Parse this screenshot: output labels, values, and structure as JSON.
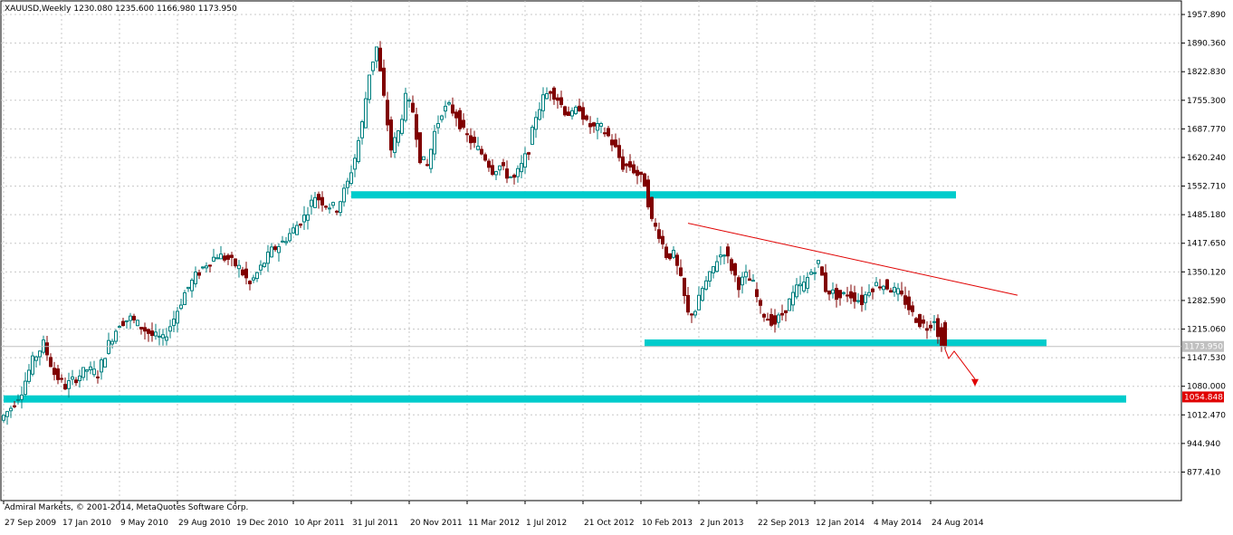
{
  "window": {
    "header_text": "XAUUSD,Weekly  1230.080 1235.600 1166.980 1173.950",
    "copyright": "Admiral Markets, © 2001-2014, MetaQuotes Software Corp."
  },
  "colors": {
    "background": "#ffffff",
    "grid": "#c8c8c8",
    "bull_candle": "#008080",
    "bear_candle": "#800000",
    "support_zone": "#00cccc",
    "trendline": "#e00000",
    "current_price_label": "#c0c0c0",
    "target_label": "#e00000",
    "axis_text": "#000000"
  },
  "chart_data": {
    "type": "candlestick",
    "symbol": "XAUUSD",
    "timeframe": "Weekly",
    "last_bar": {
      "open": 1230.08,
      "high": 1235.6,
      "low": 1166.98,
      "close": 1173.95
    },
    "ylim": [
      810,
      1990
    ],
    "y_ticks": [
      "1957.890",
      "1890.360",
      "1822.830",
      "1755.300",
      "1687.770",
      "1620.240",
      "1552.710",
      "1485.180",
      "1417.650",
      "1350.120",
      "1282.590",
      "1215.060",
      "1147.530",
      "1080.000",
      "1012.470",
      "944.940",
      "877.410"
    ],
    "y_tick_values": [
      1957.89,
      1890.36,
      1822.83,
      1755.3,
      1687.77,
      1620.24,
      1552.71,
      1485.18,
      1417.65,
      1350.12,
      1282.59,
      1215.06,
      1147.53,
      1080.0,
      1012.47,
      944.94,
      877.41
    ],
    "x_ticks": [
      "27 Sep 2009",
      "17 Jan 2010",
      "9 May 2010",
      "29 Aug 2010",
      "19 Dec 2010",
      "10 Apr 2011",
      "31 Jul 2011",
      "20 Nov 2011",
      "11 Mar 2012",
      "1 Jul 2012",
      "21 Oct 2012",
      "10 Feb 2013",
      "2 Jun 2013",
      "22 Sep 2013",
      "12 Jan 2014",
      "4 May 2014",
      "24 Aug 2014"
    ],
    "x_tick_weeks": [
      0,
      16,
      32,
      48,
      64,
      80,
      96,
      112,
      128,
      144,
      160,
      176,
      192,
      208,
      224,
      240,
      256
    ],
    "price_path": [
      [
        0,
        1000
      ],
      [
        3,
        1030
      ],
      [
        6,
        1070
      ],
      [
        9,
        1140
      ],
      [
        12,
        1180
      ],
      [
        15,
        1110
      ],
      [
        18,
        1080
      ],
      [
        21,
        1100
      ],
      [
        24,
        1120
      ],
      [
        27,
        1110
      ],
      [
        30,
        1180
      ],
      [
        33,
        1230
      ],
      [
        36,
        1240
      ],
      [
        39,
        1220
      ],
      [
        42,
        1200
      ],
      [
        45,
        1190
      ],
      [
        48,
        1240
      ],
      [
        51,
        1300
      ],
      [
        54,
        1340
      ],
      [
        57,
        1370
      ],
      [
        60,
        1390
      ],
      [
        63,
        1380
      ],
      [
        66,
        1360
      ],
      [
        69,
        1320
      ],
      [
        72,
        1360
      ],
      [
        75,
        1400
      ],
      [
        78,
        1420
      ],
      [
        81,
        1450
      ],
      [
        84,
        1480
      ],
      [
        87,
        1530
      ],
      [
        90,
        1510
      ],
      [
        93,
        1500
      ],
      [
        96,
        1560
      ],
      [
        98,
        1620
      ],
      [
        100,
        1700
      ],
      [
        102,
        1820
      ],
      [
        104,
        1880
      ],
      [
        106,
        1760
      ],
      [
        108,
        1640
      ],
      [
        110,
        1680
      ],
      [
        112,
        1760
      ],
      [
        114,
        1730
      ],
      [
        116,
        1620
      ],
      [
        118,
        1600
      ],
      [
        120,
        1680
      ],
      [
        122,
        1730
      ],
      [
        124,
        1740
      ],
      [
        126,
        1720
      ],
      [
        128,
        1680
      ],
      [
        130,
        1660
      ],
      [
        132,
        1640
      ],
      [
        134,
        1620
      ],
      [
        136,
        1590
      ],
      [
        138,
        1600
      ],
      [
        140,
        1580
      ],
      [
        142,
        1570
      ],
      [
        144,
        1600
      ],
      [
        146,
        1640
      ],
      [
        148,
        1720
      ],
      [
        150,
        1760
      ],
      [
        152,
        1780
      ],
      [
        154,
        1760
      ],
      [
        156,
        1730
      ],
      [
        158,
        1720
      ],
      [
        160,
        1740
      ],
      [
        162,
        1700
      ],
      [
        164,
        1690
      ],
      [
        166,
        1690
      ],
      [
        168,
        1670
      ],
      [
        170,
        1640
      ],
      [
        172,
        1600
      ],
      [
        174,
        1600
      ],
      [
        176,
        1580
      ],
      [
        178,
        1560
      ],
      [
        180,
        1470
      ],
      [
        182,
        1440
      ],
      [
        184,
        1390
      ],
      [
        186,
        1390
      ],
      [
        188,
        1330
      ],
      [
        190,
        1250
      ],
      [
        192,
        1260
      ],
      [
        194,
        1310
      ],
      [
        196,
        1340
      ],
      [
        198,
        1380
      ],
      [
        200,
        1400
      ],
      [
        202,
        1360
      ],
      [
        204,
        1320
      ],
      [
        206,
        1340
      ],
      [
        208,
        1320
      ],
      [
        210,
        1260
      ],
      [
        212,
        1240
      ],
      [
        214,
        1230
      ],
      [
        216,
        1250
      ],
      [
        218,
        1280
      ],
      [
        220,
        1310
      ],
      [
        222,
        1320
      ],
      [
        224,
        1350
      ],
      [
        226,
        1370
      ],
      [
        228,
        1310
      ],
      [
        230,
        1300
      ],
      [
        232,
        1290
      ],
      [
        234,
        1300
      ],
      [
        236,
        1290
      ],
      [
        238,
        1280
      ],
      [
        240,
        1310
      ],
      [
        242,
        1320
      ],
      [
        244,
        1320
      ],
      [
        246,
        1310
      ],
      [
        248,
        1300
      ],
      [
        250,
        1280
      ],
      [
        252,
        1250
      ],
      [
        254,
        1230
      ],
      [
        256,
        1220
      ],
      [
        258,
        1240
      ],
      [
        260,
        1174
      ]
    ],
    "annotations": {
      "support_zones": [
        {
          "name": "upper-resistance",
          "price": 1532,
          "from_week": 96,
          "to_week": 263
        },
        {
          "name": "lower-support",
          "price": 1182,
          "from_week": 177,
          "to_week": 288
        },
        {
          "name": "long-term-support",
          "price": 1050,
          "from_week": 0,
          "to_week": 310
        }
      ],
      "trendline": {
        "from_week": 189,
        "from_price": 1465,
        "to_week": 280,
        "to_price": 1295
      },
      "current_price_label": "1173.950",
      "target_price_label": "1054.848"
    }
  }
}
